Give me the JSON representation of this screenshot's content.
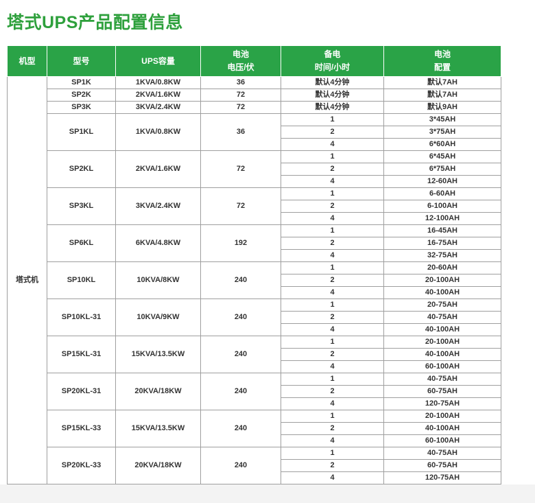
{
  "page": {
    "title": "塔式UPS产品配置信息",
    "colors": {
      "title_green": "#2EA03C",
      "header_green": "#2AA347",
      "border_gray": "#9E9E9E",
      "body_text": "#333333",
      "footer_gray": "#F3F3F3"
    }
  },
  "table": {
    "columns": [
      {
        "label": "机型"
      },
      {
        "label": "型号"
      },
      {
        "label": "UPS容量"
      },
      {
        "label": "电池\n电压/伏"
      },
      {
        "label": "备电\n时间/小时"
      },
      {
        "label": "电池\n配置"
      }
    ],
    "machine_type": "塔式机",
    "groups": [
      {
        "model": "SP1K",
        "capacity": "1KVA/0.8KW",
        "voltage": "36",
        "rows": [
          {
            "time": "默认4分钟",
            "config": "默认7AH"
          }
        ]
      },
      {
        "model": "SP2K",
        "capacity": "2KVA/1.6KW",
        "voltage": "72",
        "rows": [
          {
            "time": "默认4分钟",
            "config": "默认7AH"
          }
        ]
      },
      {
        "model": "SP3K",
        "capacity": "3KVA/2.4KW",
        "voltage": "72",
        "rows": [
          {
            "time": "默认4分钟",
            "config": "默认9AH"
          }
        ]
      },
      {
        "model": "SP1KL",
        "capacity": "1KVA/0.8KW",
        "voltage": "36",
        "rows": [
          {
            "time": "1",
            "config": "3*45AH"
          },
          {
            "time": "2",
            "config": "3*75AH"
          },
          {
            "time": "4",
            "config": "6*60AH"
          }
        ]
      },
      {
        "model": "SP2KL",
        "capacity": "2KVA/1.6KW",
        "voltage": "72",
        "rows": [
          {
            "time": "1",
            "config": "6*45AH"
          },
          {
            "time": "2",
            "config": "6*75AH"
          },
          {
            "time": "4",
            "config": "12-60AH"
          }
        ]
      },
      {
        "model": "SP3KL",
        "capacity": "3KVA/2.4KW",
        "voltage": "72",
        "rows": [
          {
            "time": "1",
            "config": "6-60AH"
          },
          {
            "time": "2",
            "config": "6-100AH"
          },
          {
            "time": "4",
            "config": "12-100AH"
          }
        ]
      },
      {
        "model": "SP6KL",
        "capacity": "6KVA/4.8KW",
        "voltage": "192",
        "rows": [
          {
            "time": "1",
            "config": "16-45AH"
          },
          {
            "time": "2",
            "config": "16-75AH"
          },
          {
            "time": "4",
            "config": "32-75AH"
          }
        ]
      },
      {
        "model": "SP10KL",
        "capacity": "10KVA/8KW",
        "voltage": "240",
        "rows": [
          {
            "time": "1",
            "config": "20-60AH"
          },
          {
            "time": "2",
            "config": "20-100AH"
          },
          {
            "time": "4",
            "config": "40-100AH"
          }
        ]
      },
      {
        "model": "SP10KL-31",
        "capacity": "10KVA/9KW",
        "voltage": "240",
        "rows": [
          {
            "time": "1",
            "config": "20-75AH"
          },
          {
            "time": "2",
            "config": "40-75AH"
          },
          {
            "time": "4",
            "config": "40-100AH"
          }
        ]
      },
      {
        "model": "SP15KL-31",
        "capacity": "15KVA/13.5KW",
        "voltage": "240",
        "rows": [
          {
            "time": "1",
            "config": "20-100AH"
          },
          {
            "time": "2",
            "config": "40-100AH"
          },
          {
            "time": "4",
            "config": "60-100AH"
          }
        ]
      },
      {
        "model": "SP20KL-31",
        "capacity": "20KVA/18KW",
        "voltage": "240",
        "rows": [
          {
            "time": "1",
            "config": "40-75AH"
          },
          {
            "time": "2",
            "config": "60-75AH"
          },
          {
            "time": "4",
            "config": "120-75AH"
          }
        ]
      },
      {
        "model": "SP15KL-33",
        "capacity": "15KVA/13.5KW",
        "voltage": "240",
        "rows": [
          {
            "time": "1",
            "config": "20-100AH"
          },
          {
            "time": "2",
            "config": "40-100AH"
          },
          {
            "time": "4",
            "config": "60-100AH"
          }
        ]
      },
      {
        "model": "SP20KL-33",
        "capacity": "20KVA/18KW",
        "voltage": "240",
        "rows": [
          {
            "time": "1",
            "config": "40-75AH"
          },
          {
            "time": "2",
            "config": "60-75AH"
          },
          {
            "time": "4",
            "config": "120-75AH"
          }
        ]
      }
    ]
  }
}
